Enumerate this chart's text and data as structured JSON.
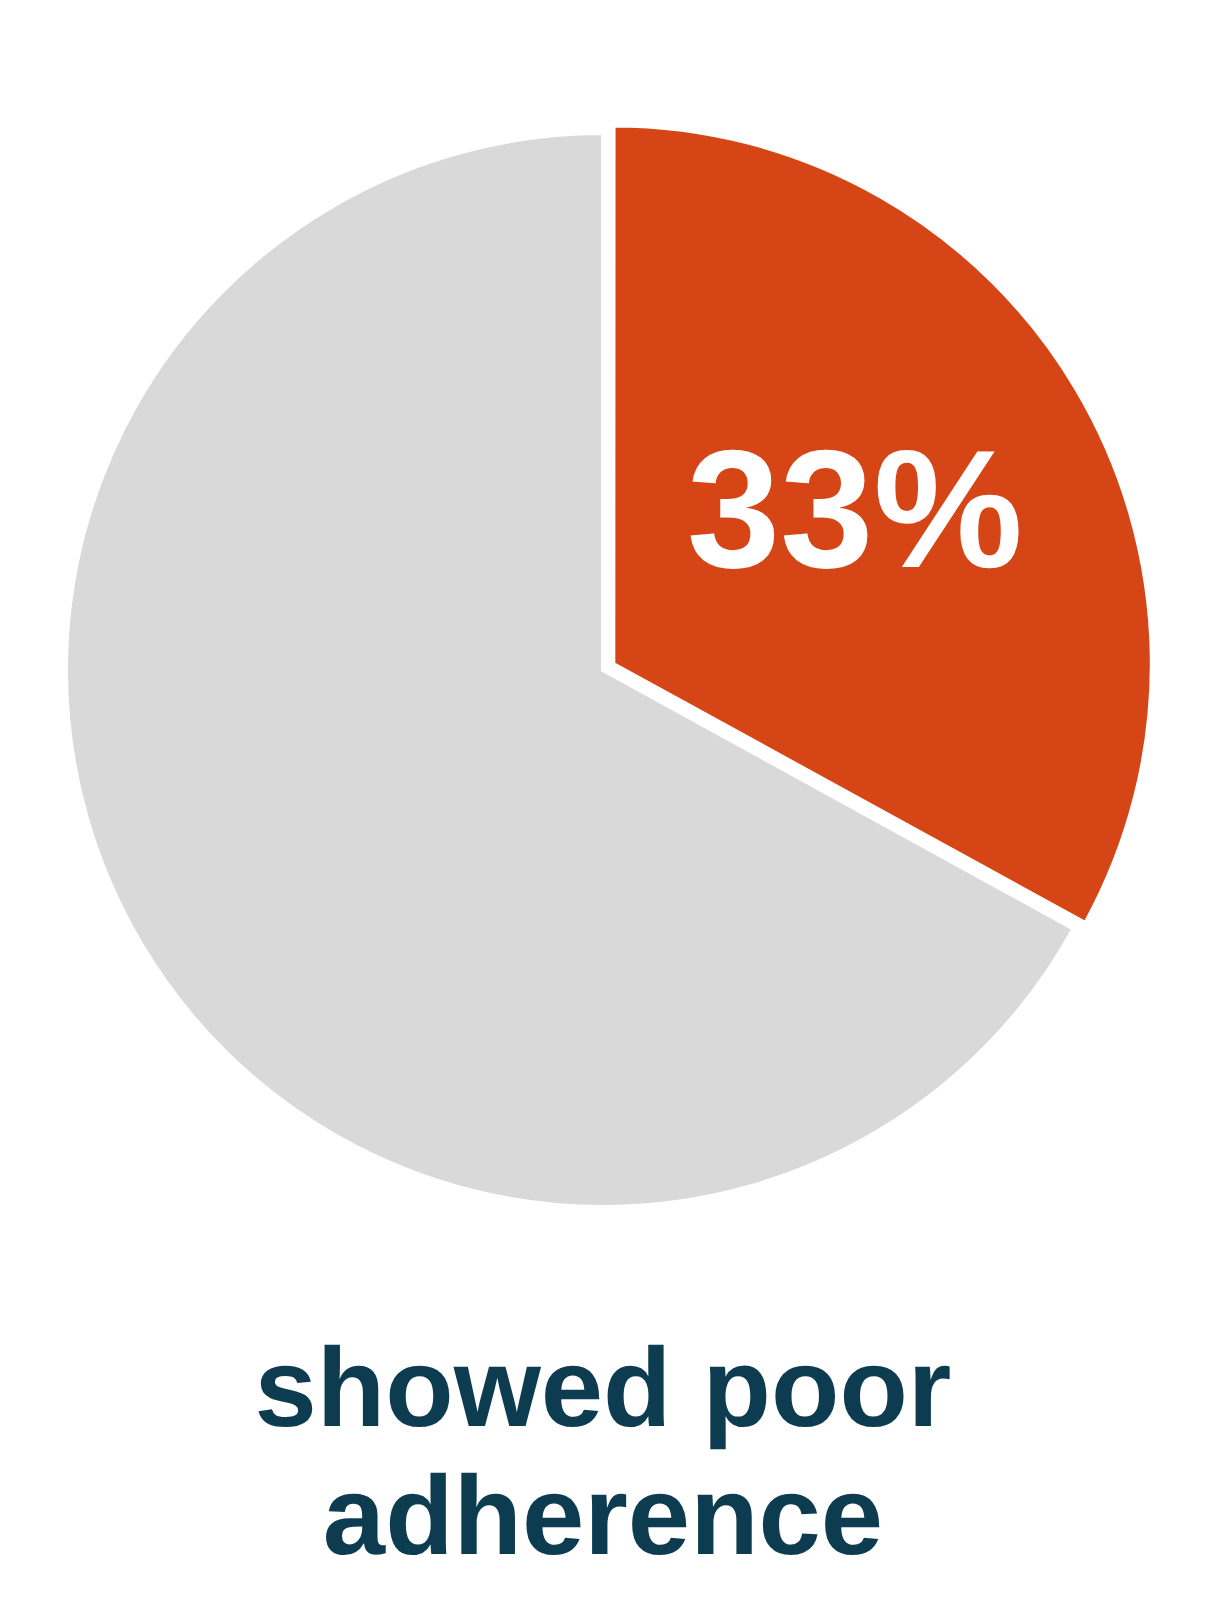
{
  "chart_data": {
    "type": "pie",
    "categories": [
      null,
      null
    ],
    "values": [
      33,
      67
    ],
    "colors": [
      "#d64516",
      "#d9d9d9"
    ],
    "value_labels": [
      "33%",
      null
    ],
    "annotations": [
      "showed poor adherence"
    ],
    "legend": false
  }
}
